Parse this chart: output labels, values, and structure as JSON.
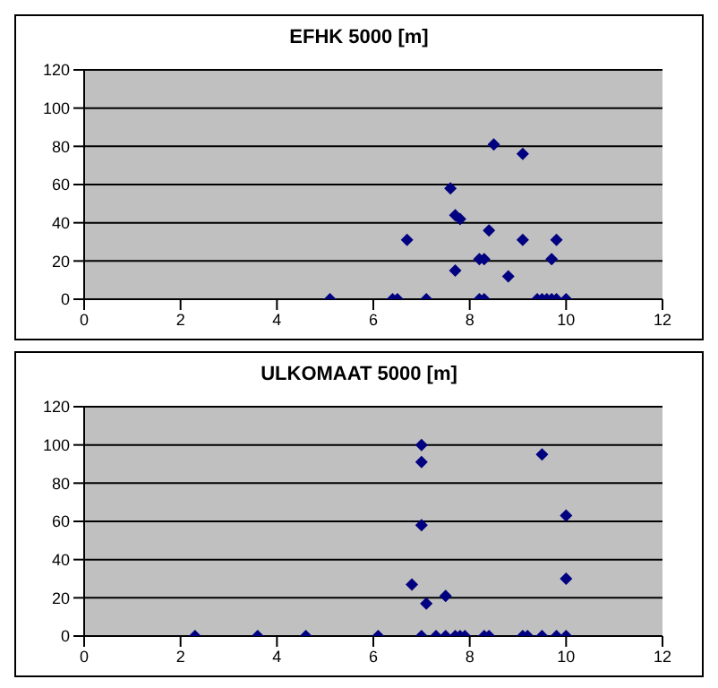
{
  "chart_data": [
    {
      "type": "scatter",
      "title": "EFHK 5000 [m]",
      "xlim": [
        0,
        12
      ],
      "xticks": [
        0,
        2,
        4,
        6,
        8,
        10,
        12
      ],
      "ylim": [
        0,
        120
      ],
      "yticks": [
        0,
        20,
        40,
        60,
        80,
        100,
        120
      ],
      "grid": "y",
      "legend": false,
      "marker": "diamond",
      "series": [
        {
          "color": "#000080",
          "x": [
            5.1,
            6.4,
            6.5,
            7.1,
            6.7,
            7.6,
            7.7,
            7.8,
            7.7,
            8.2,
            8.3,
            8.2,
            8.3,
            8.5,
            8.4,
            8.8,
            9.1,
            9.1,
            9.7,
            9.8,
            9.4,
            9.5,
            9.6,
            9.7,
            9.8,
            10
          ],
          "values": [
            0,
            0,
            0,
            0,
            31,
            58,
            44,
            42,
            15,
            21,
            21,
            0,
            0,
            81,
            36,
            12,
            76,
            31,
            21,
            31,
            0,
            0,
            0,
            0,
            0,
            0
          ]
        }
      ]
    },
    {
      "type": "scatter",
      "title": "ULKOMAAT 5000 [m]",
      "xlim": [
        0,
        12
      ],
      "xticks": [
        0,
        2,
        4,
        6,
        8,
        10,
        12
      ],
      "ylim": [
        0,
        120
      ],
      "yticks": [
        0,
        20,
        40,
        60,
        80,
        100,
        120
      ],
      "grid": "y",
      "legend": false,
      "marker": "diamond",
      "series": [
        {
          "color": "#000080",
          "x": [
            2.3,
            3.6,
            4.6,
            6.1,
            7,
            7,
            7,
            6.8,
            7.1,
            7.5,
            7,
            7.3,
            7.5,
            7.7,
            7.8,
            7.9,
            8.3,
            8.4,
            9.1,
            9.2,
            9.5,
            9.5,
            9.8,
            10,
            10,
            10
          ],
          "values": [
            0,
            0,
            0,
            0,
            100,
            91,
            58,
            27,
            17,
            21,
            0,
            0,
            0,
            0,
            0,
            0,
            0,
            0,
            0,
            0,
            95,
            0,
            0,
            63,
            30,
            0
          ]
        }
      ]
    }
  ]
}
